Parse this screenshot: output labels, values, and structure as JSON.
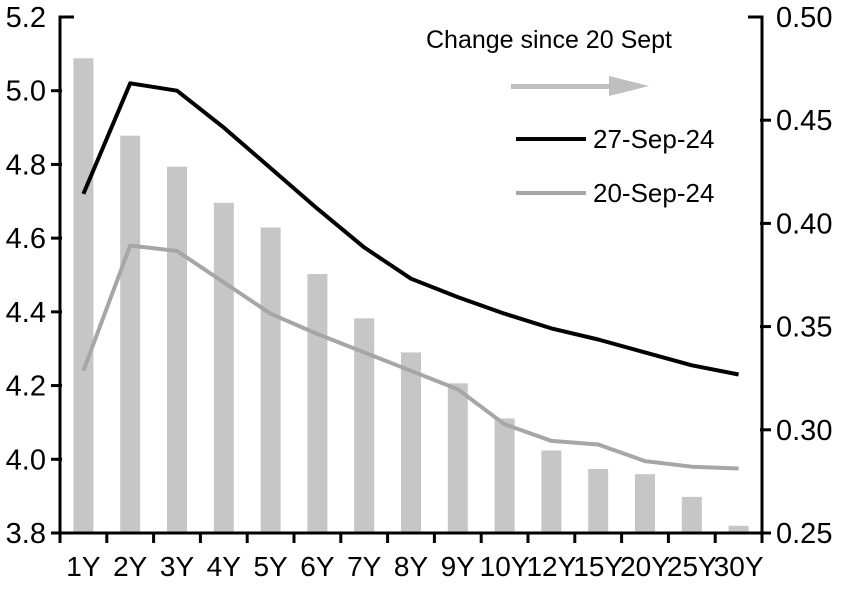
{
  "chart_data": {
    "type": "bar",
    "subtype": "combo-bar-line-dual-axis",
    "categories": [
      "1Y",
      "2Y",
      "3Y",
      "4Y",
      "5Y",
      "6Y",
      "7Y",
      "8Y",
      "9Y",
      "10Y",
      "12Y",
      "15Y",
      "20Y",
      "25Y",
      "30Y"
    ],
    "left_axis": {
      "min": 3.8,
      "max": 5.2,
      "step": 0.2,
      "ticks": [
        "5.2",
        "5.0",
        "4.8",
        "4.6",
        "4.4",
        "4.2",
        "4.0",
        "3.8"
      ]
    },
    "right_axis": {
      "min": 0.25,
      "max": 0.5,
      "step": 0.05,
      "ticks": [
        "0.50",
        "0.45",
        "0.40",
        "0.35",
        "0.30",
        "0.25"
      ]
    },
    "series": [
      {
        "name": "Change since 20 Sept",
        "type": "bar",
        "axis": "right",
        "color": "#c6c6c6",
        "values": [
          0.48,
          0.4425,
          0.4275,
          0.41,
          0.398,
          0.3755,
          0.354,
          0.3375,
          0.3225,
          0.3055,
          0.29,
          0.281,
          0.2785,
          0.2675,
          0.2535
        ]
      },
      {
        "name": "27-Sep-24",
        "type": "line",
        "axis": "left",
        "color": "#000000",
        "values": [
          4.72,
          5.02,
          5.0,
          4.9,
          4.79,
          4.68,
          4.575,
          4.49,
          4.44,
          4.395,
          4.355,
          4.325,
          4.29,
          4.255,
          4.23
        ]
      },
      {
        "name": "20-Sep-24",
        "type": "line",
        "axis": "left",
        "color": "#a6a6a6",
        "values": [
          4.24,
          4.58,
          4.565,
          4.48,
          4.395,
          4.34,
          4.29,
          4.24,
          4.19,
          4.095,
          4.05,
          4.04,
          3.995,
          3.98,
          3.975
        ]
      }
    ],
    "legend": {
      "position": "top-right-inside",
      "title": "Change since 20 Sept",
      "arrow_icon_color": "#bfbfbf",
      "entries": [
        {
          "label": "27-Sep-24",
          "color": "#000000"
        },
        {
          "label": "20-Sep-24",
          "color": "#a6a6a6"
        }
      ]
    },
    "title": "",
    "xlabel": "",
    "ylabel_left": "",
    "ylabel_right": "",
    "grid": false,
    "axis_color": "#000000"
  }
}
